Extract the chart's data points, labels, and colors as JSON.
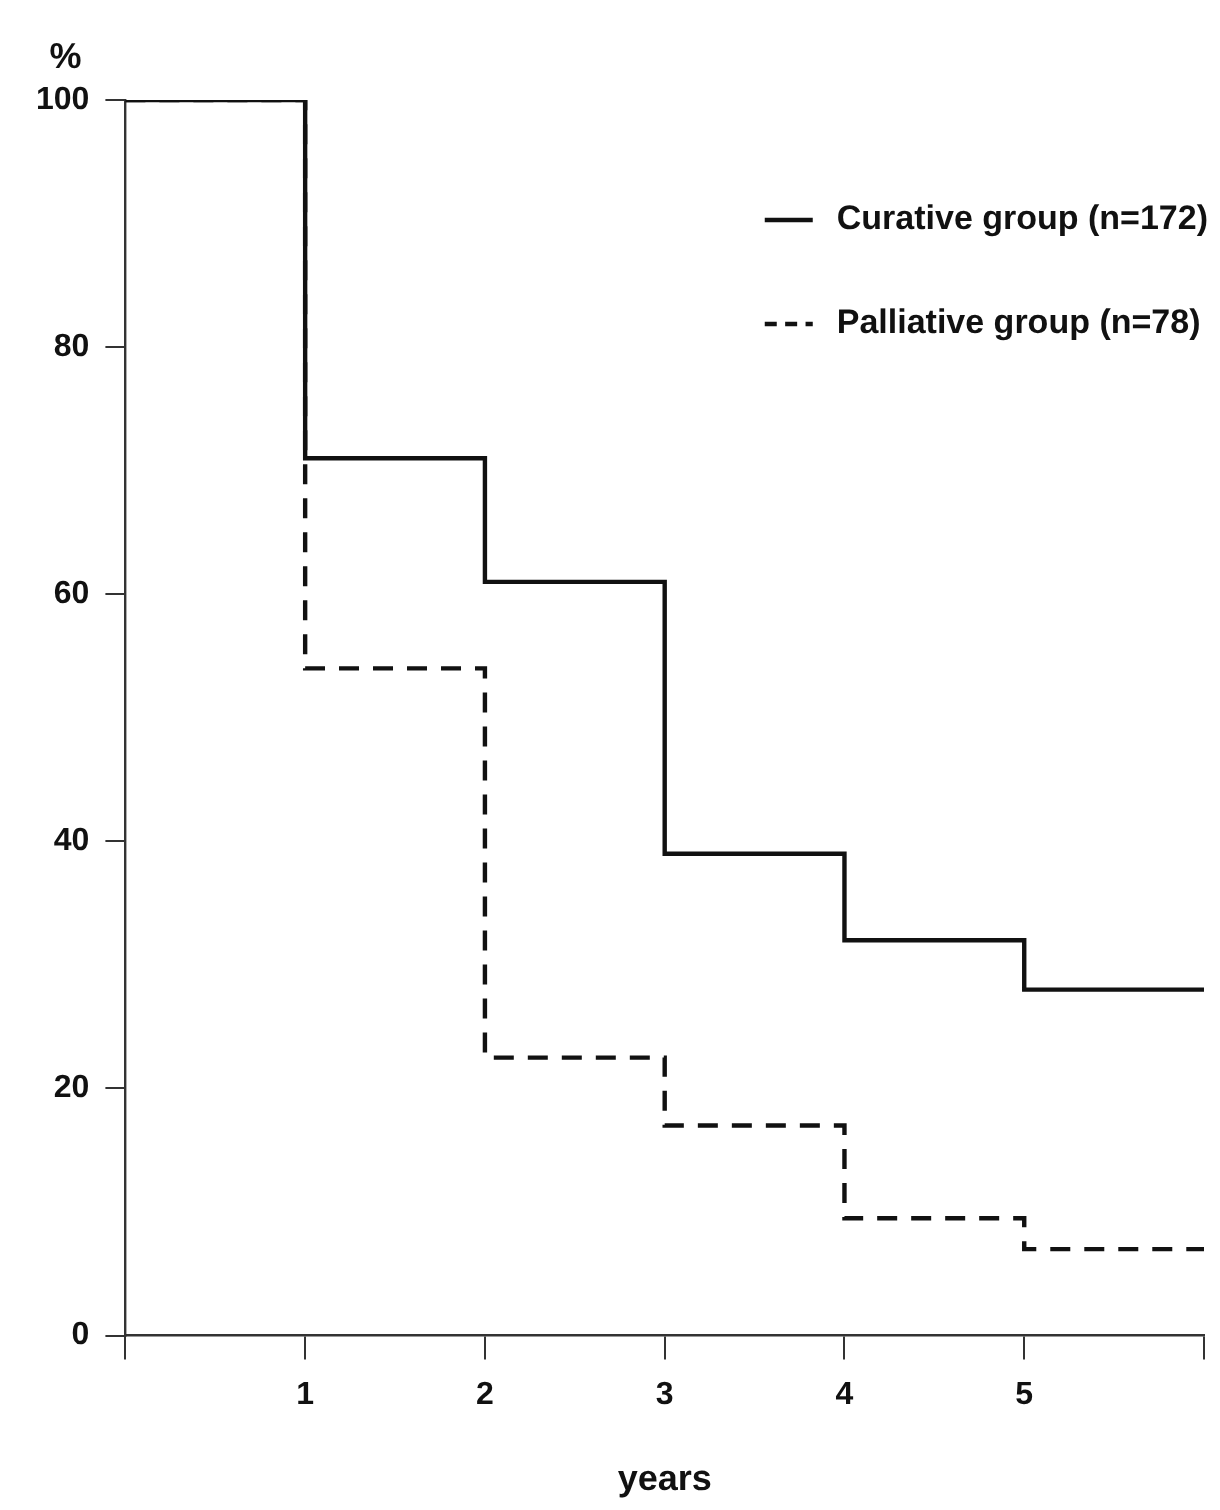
{
  "chart_data": {
    "type": "step",
    "ylabel": "%",
    "xlabel": "years",
    "x": [
      0,
      1,
      2,
      3,
      4,
      5,
      6
    ],
    "series": [
      {
        "name": "Curative group (n=172)",
        "color": "#111111",
        "line_style": "solid",
        "values": [
          100,
          71,
          61,
          39,
          32,
          28,
          28
        ]
      },
      {
        "name": "Palliative group (n=78)",
        "color": "#111111",
        "line_style": "dashed",
        "values": [
          100,
          54,
          22.5,
          17,
          9.5,
          7,
          7
        ]
      }
    ],
    "xlim": [
      0,
      6
    ],
    "xticks": [
      {
        "value": 0,
        "label": null
      },
      1,
      2,
      3,
      4,
      5,
      {
        "value": 6,
        "label": null
      }
    ],
    "ylim": [
      0,
      100
    ],
    "yticks": [
      0,
      20,
      40,
      60,
      80,
      100
    ],
    "grid": false,
    "legend": "top right",
    "marker": "none"
  }
}
